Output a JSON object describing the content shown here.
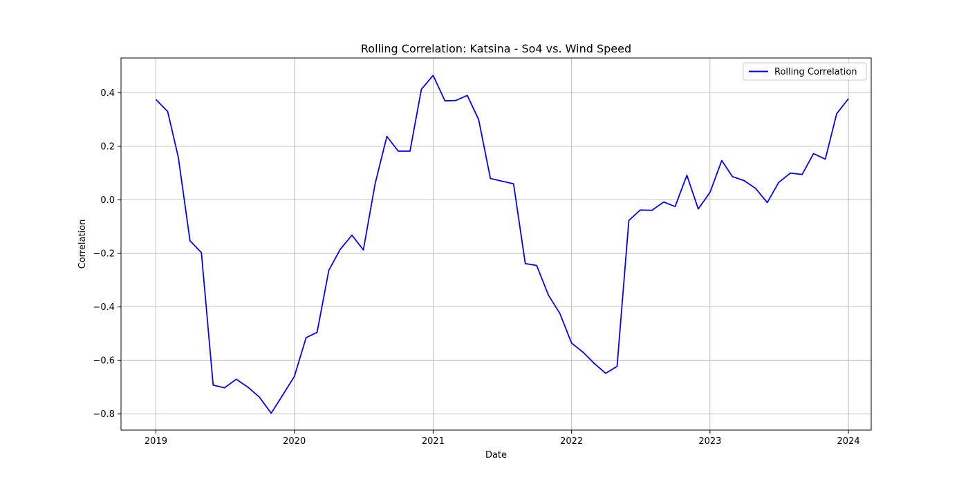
{
  "chart_data": {
    "type": "line",
    "title": "Rolling Correlation: Katsina - So4 vs. Wind Speed",
    "xlabel": "Date",
    "ylabel": "Correlation",
    "x_ticks": [
      "2019",
      "2020",
      "2021",
      "2022",
      "2023",
      "2024"
    ],
    "y_ticks": [
      "−0.8",
      "−0.6",
      "−0.4",
      "−0.2",
      "0.0",
      "0.2",
      "0.4"
    ],
    "ylim": [
      -0.86,
      0.53
    ],
    "xlim": [
      "2018-10-01",
      "2024-03-01"
    ],
    "grid": true,
    "legend_position": "top-right",
    "series": [
      {
        "name": "Rolling Correlation",
        "color": "#0000ff",
        "x": [
          "2019-01",
          "2019-02",
          "2019-03",
          "2019-04",
          "2019-05",
          "2019-06",
          "2019-07",
          "2019-08",
          "2019-09",
          "2019-10",
          "2019-11",
          "2019-12",
          "2020-01",
          "2020-02",
          "2020-03",
          "2020-04",
          "2020-05",
          "2020-06",
          "2020-07",
          "2020-08",
          "2020-09",
          "2020-10",
          "2020-11",
          "2020-12",
          "2021-01",
          "2021-02",
          "2021-03",
          "2021-04",
          "2021-05",
          "2021-06",
          "2021-07",
          "2021-08",
          "2021-09",
          "2021-10",
          "2021-11",
          "2021-12",
          "2022-01",
          "2022-02",
          "2022-03",
          "2022-04",
          "2022-05",
          "2022-06",
          "2022-07",
          "2022-08",
          "2022-09",
          "2022-10",
          "2022-11",
          "2022-12",
          "2023-01",
          "2023-02",
          "2023-03",
          "2023-04",
          "2023-05",
          "2023-06",
          "2023-07",
          "2023-08",
          "2023-09",
          "2023-10",
          "2023-11",
          "2023-12",
          "2024-01"
        ],
        "values": [
          0.375,
          0.33,
          0.16,
          -0.153,
          -0.197,
          -0.692,
          -0.702,
          -0.67,
          -0.7,
          -0.737,
          -0.797,
          -0.73,
          -0.66,
          -0.515,
          -0.495,
          -0.263,
          -0.185,
          -0.132,
          -0.187,
          0.06,
          0.237,
          0.182,
          0.182,
          0.413,
          0.465,
          0.37,
          0.371,
          0.39,
          0.3,
          0.08,
          0.07,
          0.06,
          -0.238,
          -0.245,
          -0.356,
          -0.424,
          -0.535,
          -0.57,
          -0.61,
          -0.648,
          -0.622,
          -0.077,
          -0.038,
          -0.039,
          -0.008,
          -0.025,
          0.092,
          -0.034,
          0.028,
          0.147,
          0.087,
          0.072,
          0.043,
          -0.01,
          0.065,
          0.1,
          0.095,
          0.173,
          0.152,
          0.322,
          0.378
        ]
      }
    ]
  }
}
